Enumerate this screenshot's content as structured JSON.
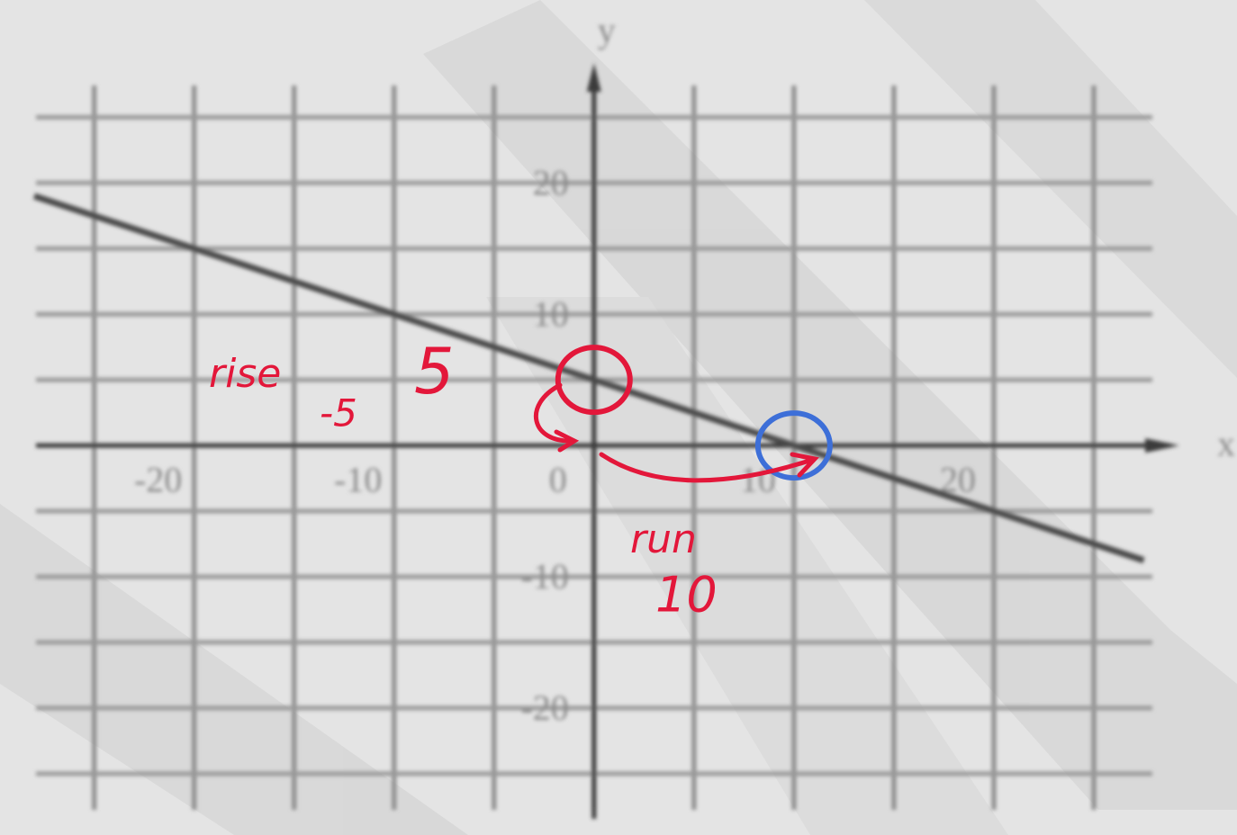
{
  "chart_data": {
    "type": "line",
    "x_label": "x",
    "y_label": "y",
    "x": [
      -28,
      27.5
    ],
    "series": [
      {
        "color": "#4a4a4a",
        "values": [
          19,
          -8.75
        ]
      }
    ],
    "xlim": [
      -28,
      30
    ],
    "ylim": [
      -27,
      29
    ],
    "xticks": [
      {
        "value": -25,
        "label": null
      },
      -20,
      {
        "value": -15,
        "label": null
      },
      -10,
      {
        "value": -5,
        "label": null
      },
      0,
      {
        "value": 5,
        "label": null
      },
      10,
      {
        "value": 15,
        "label": null
      },
      20,
      {
        "value": 25,
        "label": null
      }
    ],
    "yticks": [
      {
        "value": -25,
        "label": null
      },
      -20,
      {
        "value": -15,
        "label": null
      },
      -10,
      {
        "value": -5,
        "label": null
      },
      {
        "value": 0,
        "label": null
      },
      {
        "value": 5,
        "label": null
      },
      10,
      {
        "value": 15,
        "label": null
      },
      20,
      {
        "value": 25,
        "label": null
      }
    ],
    "grid": true,
    "points": {
      "x": [
        0,
        10
      ],
      "y": [
        5,
        0
      ],
      "colors": [
        "#e3173a",
        "#3d6fd8"
      ]
    },
    "annotations": [
      {
        "text": "rise",
        "color": "#e3173a"
      },
      {
        "text": "-5",
        "color": "#e3173a"
      },
      {
        "text": "5",
        "color": "#e3173a"
      },
      {
        "text": "run",
        "color": "#e3173a"
      },
      {
        "text": "10",
        "color": "#e3173a"
      }
    ]
  }
}
